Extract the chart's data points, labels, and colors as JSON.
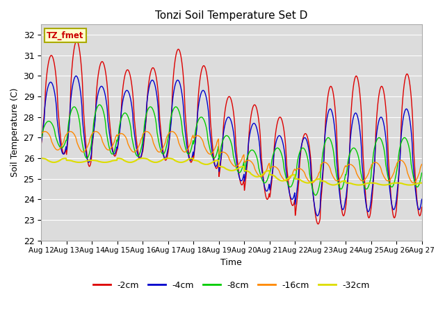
{
  "title": "Tonzi Soil Temperature Set D",
  "xlabel": "Time",
  "ylabel": "Soil Temperature (C)",
  "ylim": [
    22.0,
    32.5
  ],
  "yticks": [
    22.0,
    23.0,
    24.0,
    25.0,
    26.0,
    27.0,
    28.0,
    29.0,
    30.0,
    31.0,
    32.0
  ],
  "bg_color": "#dcdcdc",
  "series_colors": {
    "-2cm": "#dd0000",
    "-4cm": "#0000cc",
    "-8cm": "#00cc00",
    "-16cm": "#ff8800",
    "-32cm": "#dddd00"
  },
  "legend_label": "TZ_fmet",
  "start_day": 12,
  "end_day": 27,
  "xtick_labels": [
    "Aug 12",
    "Aug 13",
    "Aug 14",
    "Aug 15",
    "Aug 16",
    "Aug 17",
    "Aug 18",
    "Aug 19",
    "Aug 20",
    "Aug 21",
    "Aug 22",
    "Aug 23",
    "Aug 24",
    "Aug 25",
    "Aug 26",
    "Aug 27"
  ]
}
